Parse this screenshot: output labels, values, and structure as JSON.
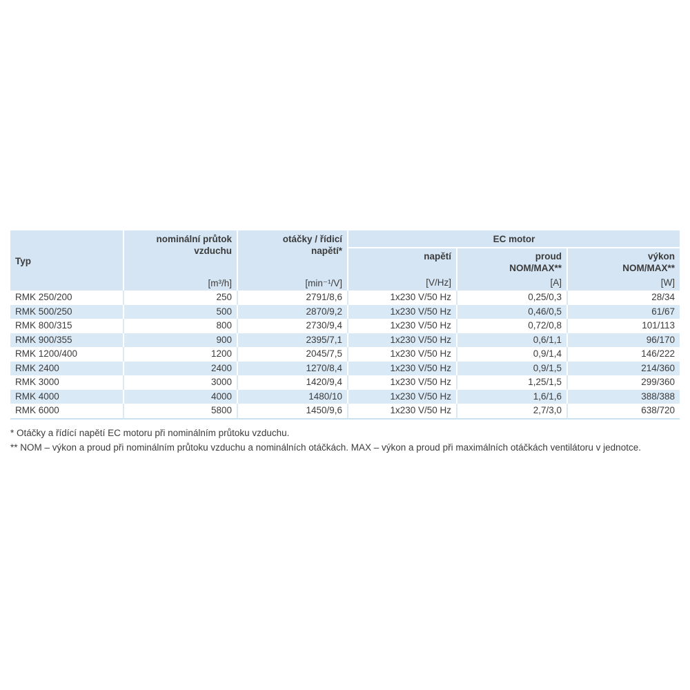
{
  "colors": {
    "header_bg": "#d5e5f3",
    "row_alt_bg": "#dae9f6",
    "grid_line": "#ffffff",
    "plain_grid": "#d9e9f6",
    "bottom_border": "#c9e0f1",
    "text": "#3b3b3b"
  },
  "table": {
    "header": {
      "typ": "Typ",
      "flow": {
        "line1": "nominální průtok",
        "line2": "vzduchu",
        "unit": "[m³/h]"
      },
      "speed": {
        "line1": "otáčky / řídicí",
        "line2": "napětí*",
        "unit": "[min⁻¹/V]"
      },
      "ec_motor": "EC motor",
      "voltage": {
        "line1": "napětí",
        "unit": "[V/Hz]"
      },
      "current": {
        "line1": "proud",
        "line2": "NOM/MAX**",
        "unit": "[A]"
      },
      "power": {
        "line1": "výkon",
        "line2": "NOM/MAX**",
        "unit": "[W]"
      }
    },
    "rows": [
      {
        "typ": "RMK 250/200",
        "flow": "250",
        "speed": "2791/8,6",
        "voltage": "1x230 V/50 Hz",
        "current": "0,25/0,3",
        "power": "28/34"
      },
      {
        "typ": "RMK 500/250",
        "flow": "500",
        "speed": "2870/9,2",
        "voltage": "1x230 V/50 Hz",
        "current": "0,46/0,5",
        "power": "61/67"
      },
      {
        "typ": "RMK 800/315",
        "flow": "800",
        "speed": "2730/9,4",
        "voltage": "1x230 V/50 Hz",
        "current": "0,72/0,8",
        "power": "101/113"
      },
      {
        "typ": "RMK 900/355",
        "flow": "900",
        "speed": "2395/7,1",
        "voltage": "1x230 V/50 Hz",
        "current": "0,6/1,1",
        "power": "96/170"
      },
      {
        "typ": "RMK 1200/400",
        "flow": "1200",
        "speed": "2045/7,5",
        "voltage": "1x230 V/50 Hz",
        "current": "0,9/1,4",
        "power": "146/222"
      },
      {
        "typ": "RMK 2400",
        "flow": "2400",
        "speed": "1270/8,4",
        "voltage": "1x230 V/50 Hz",
        "current": "0,9/1,5",
        "power": "214/360"
      },
      {
        "typ": "RMK 3000",
        "flow": "3000",
        "speed": "1420/9,4",
        "voltage": "1x230 V/50 Hz",
        "current": "1,25/1,5",
        "power": "299/360"
      },
      {
        "typ": "RMK 4000",
        "flow": "4000",
        "speed": "1480/10",
        "voltage": "1x230 V/50 Hz",
        "current": "1,6/1,6",
        "power": "388/388"
      },
      {
        "typ": "RMK 6000",
        "flow": "5800",
        "speed": "1450/9,6",
        "voltage": "1x230 V/50 Hz",
        "current": "2,7/3,0",
        "power": "638/720"
      }
    ]
  },
  "footnotes": {
    "note1": "* Otáčky a řídící napětí EC motoru při nominálním průtoku vzduchu.",
    "note2": "** NOM – výkon a proud při nominálním průtoku vzduchu a nominálních otáčkách. MAX – výkon a proud při maximálních otáčkách ventilátoru v jednotce."
  }
}
